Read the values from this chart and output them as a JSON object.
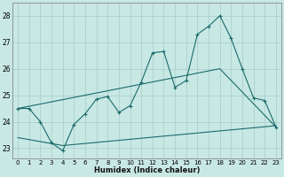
{
  "xlabel": "Humidex (Indice chaleur)",
  "bg_color": "#c8e8e4",
  "grid_color": "#a8ccc8",
  "line_color": "#1a6b6b",
  "xlim_min": -0.5,
  "xlim_max": 23.5,
  "ylim_min": 22.6,
  "ylim_max": 28.5,
  "xticks": [
    0,
    1,
    2,
    3,
    4,
    5,
    6,
    7,
    8,
    9,
    10,
    11,
    12,
    13,
    14,
    15,
    16,
    17,
    18,
    19,
    20,
    21,
    22,
    23
  ],
  "yticks": [
    23,
    24,
    25,
    26,
    27,
    28
  ],
  "series1_x": [
    0,
    1,
    2,
    3,
    4,
    5,
    6,
    7,
    8,
    9,
    10,
    11,
    12,
    13,
    14,
    15,
    16,
    17,
    18,
    19,
    20,
    21,
    22,
    23
  ],
  "series1_y": [
    24.5,
    24.5,
    24.0,
    23.2,
    22.9,
    23.9,
    24.3,
    24.85,
    24.95,
    24.35,
    24.6,
    25.5,
    26.6,
    26.65,
    25.3,
    25.55,
    27.3,
    27.6,
    28.0,
    27.15,
    26.0,
    24.9,
    24.8,
    23.8
  ],
  "series2_x": [
    0,
    18,
    23
  ],
  "series2_y": [
    24.5,
    26.0,
    23.8
  ],
  "series3_x": [
    0,
    4,
    23
  ],
  "series3_y": [
    23.4,
    23.1,
    23.85
  ]
}
